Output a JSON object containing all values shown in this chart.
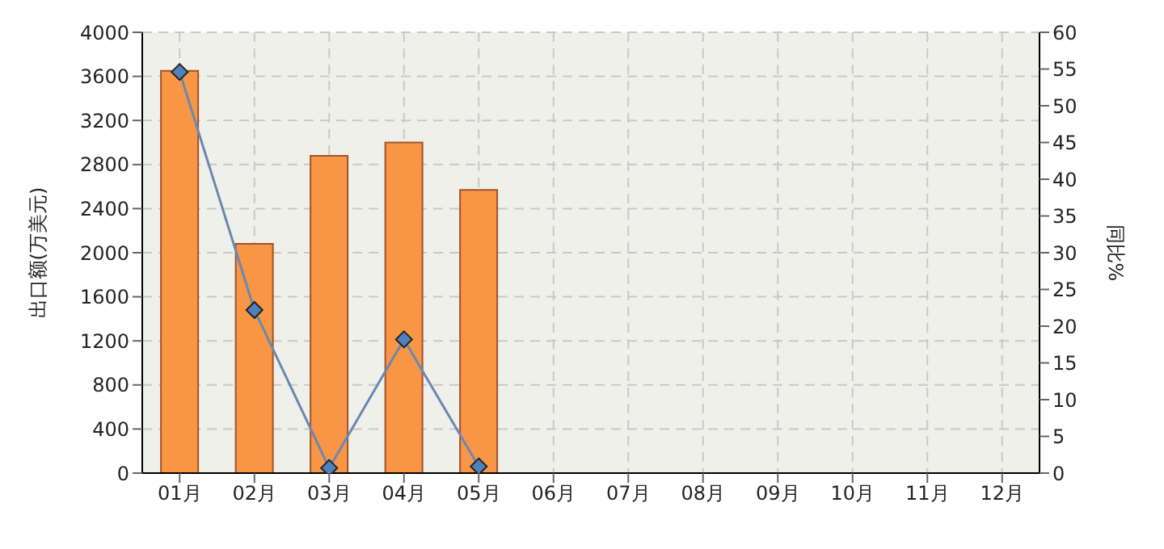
{
  "chart_data": {
    "type": "bar",
    "ylabel": "出口额(万美元)",
    "y2label": "同比%",
    "categories": [
      "01月",
      "02月",
      "03月",
      "04月",
      "05月",
      "06月",
      "07月",
      "08月",
      "09月",
      "10月",
      "11月",
      "12月"
    ],
    "series": [
      {
        "color": "#f99646",
        "values": [
          3650,
          2080,
          2880,
          3000,
          2570,
          null,
          null,
          null,
          null,
          null,
          null,
          null
        ]
      },
      {
        "type": "line",
        "axis": "y2",
        "color": "#6a88b0",
        "marker": "diamond",
        "values": [
          54.6,
          22.2,
          0.7,
          18.2,
          0.9,
          null,
          null,
          null,
          null,
          null,
          null,
          null
        ]
      }
    ],
    "ylim": [
      0,
      4000
    ],
    "yticks": [
      0,
      400,
      800,
      1200,
      1600,
      2000,
      2400,
      2800,
      3200,
      3600,
      4000
    ],
    "y2lim": [
      0,
      60
    ],
    "y2ticks": [
      0,
      5,
      10,
      15,
      20,
      25,
      30,
      35,
      40,
      45,
      50,
      55,
      60
    ],
    "grid": true,
    "legend": false
  }
}
